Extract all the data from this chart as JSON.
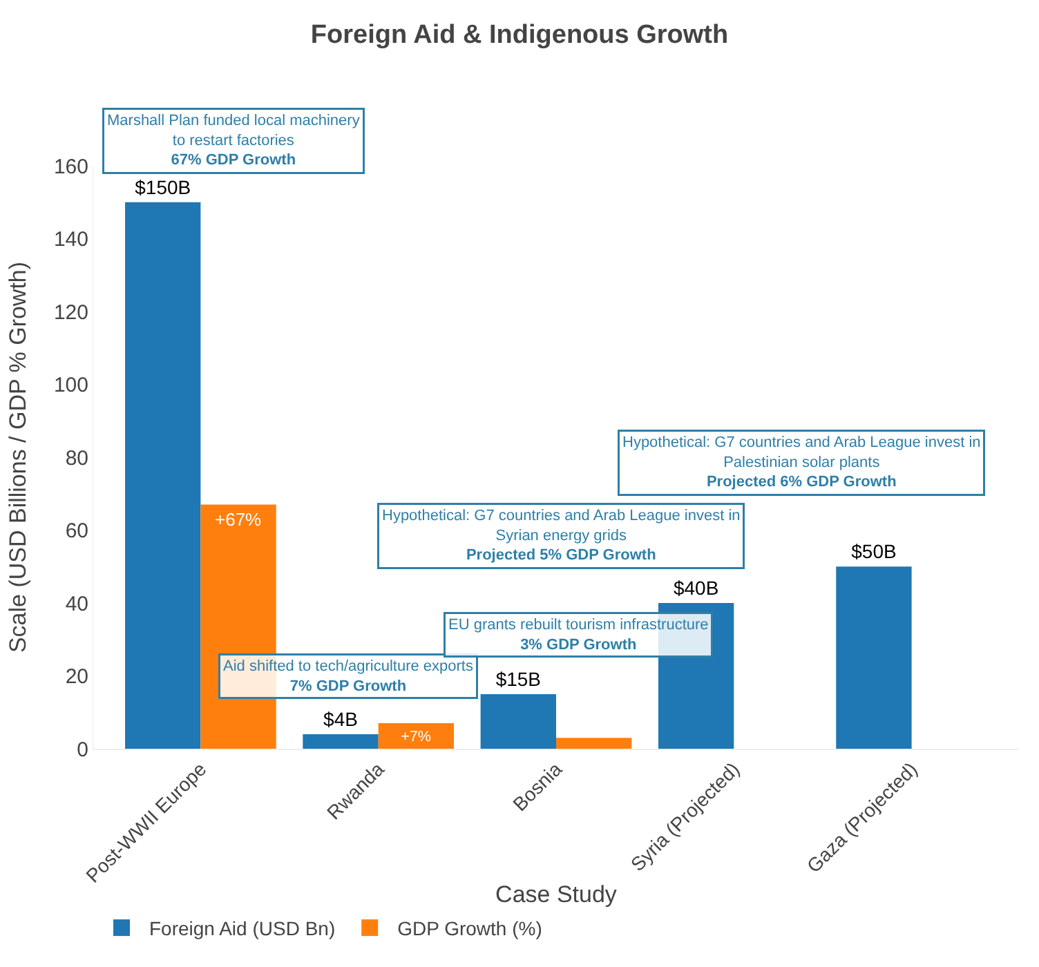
{
  "chart_data": {
    "type": "bar",
    "title": "Foreign Aid & Indigenous Growth",
    "xlabel": "Case Study",
    "ylabel": "Scale (USD Billions / GDP % Growth)",
    "categories": [
      "Post-WWII Europe",
      "Rwanda",
      "Bosnia",
      "Syria (Projected)",
      "Gaza (Projected)"
    ],
    "series": [
      {
        "name": "Foreign Aid (USD Bn)",
        "color": "#1f77b4",
        "values": [
          150,
          4,
          15,
          40,
          50
        ],
        "value_labels": [
          "$150B",
          "$4B",
          "$15B",
          "$40B",
          "$50B"
        ]
      },
      {
        "name": "GDP Growth (%)",
        "color": "#ff7f0e",
        "values": [
          67,
          7,
          3,
          null,
          null
        ],
        "value_labels": [
          "+67%",
          "+7%",
          null,
          null,
          null
        ]
      }
    ],
    "ylim": [
      0,
      160
    ],
    "yticks": [
      0,
      20,
      40,
      60,
      80,
      100,
      120,
      140,
      160
    ],
    "legend": "bottom left",
    "annotations": [
      "Marshall Plan funded local machinery\nto restart factories\n67% GDP Growth",
      "Aid shifted to tech/agriculture exports\n7% GDP Growth",
      "EU grants rebuilt tourism infrastructure\n3% GDP Growth",
      "Hypothetical: G7 countries and Arab League invest in\nSyrian energy grids\nProjected 5% GDP Growth",
      "Hypothetical: G7 countries and Arab League invest in\nPalestinian solar plants\nProjected 6% GDP Growth"
    ]
  }
}
